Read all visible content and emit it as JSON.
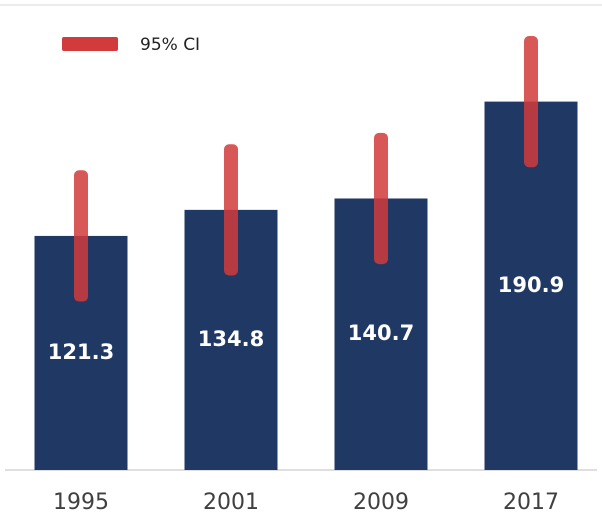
{
  "chart_data": {
    "type": "bar",
    "categories": [
      "1995",
      "2001",
      "2009",
      "2017"
    ],
    "values": [
      121.3,
      134.8,
      140.7,
      190.9
    ],
    "color": "#1f3864",
    "error_bars": {
      "name": "95% CI",
      "color": "#d13b3b",
      "values": [
        34,
        34,
        34,
        34
      ]
    }
  }
}
